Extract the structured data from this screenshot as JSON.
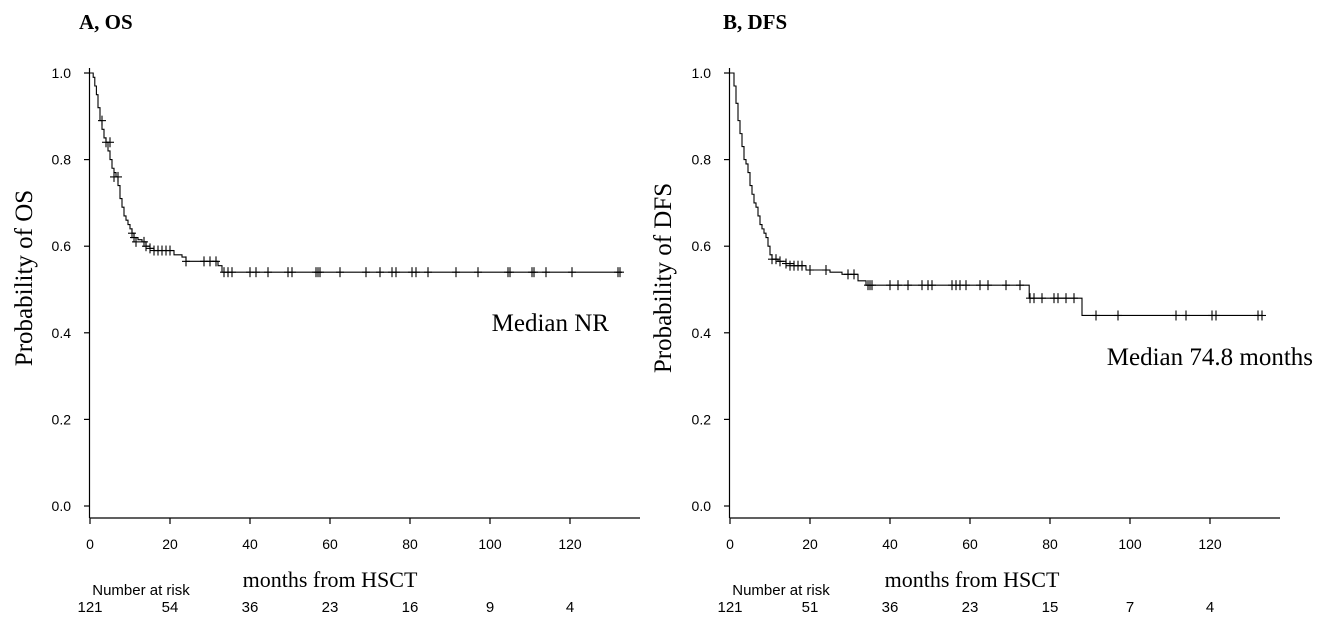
{
  "chart_data": [
    {
      "type": "line",
      "title": "A, OS",
      "xlabel": "months from HSCT",
      "ylabel": "Probability of OS",
      "xlim": [
        0,
        138
      ],
      "ylim": [
        0,
        1
      ],
      "x_ticks": [
        0,
        20,
        40,
        60,
        80,
        100,
        120
      ],
      "y_ticks": [
        0.0,
        0.2,
        0.4,
        0.6,
        0.8,
        1.0
      ],
      "annotation": "Median  NR",
      "risk_table": {
        "label": "Number at risk",
        "times": [
          0,
          20,
          40,
          60,
          80,
          100,
          120
        ],
        "counts": [
          "121",
          "54",
          "36",
          "23",
          "16",
          "9",
          "4"
        ]
      },
      "series": [
        {
          "steps": [
            [
              0,
              1.0
            ],
            [
              0.8,
              0.99
            ],
            [
              1.2,
              0.97
            ],
            [
              1.6,
              0.95
            ],
            [
              2.0,
              0.92
            ],
            [
              2.5,
              0.89
            ],
            [
              3.0,
              0.87
            ],
            [
              3.5,
              0.85
            ],
            [
              4.0,
              0.84
            ],
            [
              4.5,
              0.82
            ],
            [
              5.0,
              0.8
            ],
            [
              5.5,
              0.78
            ],
            [
              6.0,
              0.77
            ],
            [
              6.5,
              0.76
            ],
            [
              7.0,
              0.74
            ],
            [
              7.5,
              0.71
            ],
            [
              8.0,
              0.69
            ],
            [
              8.5,
              0.67
            ],
            [
              9.0,
              0.66
            ],
            [
              9.5,
              0.65
            ],
            [
              10.0,
              0.64
            ],
            [
              10.5,
              0.63
            ],
            [
              11.0,
              0.62
            ],
            [
              12.0,
              0.615
            ],
            [
              13.0,
              0.61
            ],
            [
              14.0,
              0.6
            ],
            [
              15.0,
              0.595
            ],
            [
              16.0,
              0.59
            ],
            [
              21.0,
              0.58
            ],
            [
              23.0,
              0.575
            ],
            [
              24.0,
              0.565
            ],
            [
              32.0,
              0.555
            ],
            [
              33.0,
              0.54
            ]
          ],
          "end": 133,
          "censors": [
            [
              3,
              0.89
            ],
            [
              4,
              0.84
            ],
            [
              5,
              0.84
            ],
            [
              6,
              0.76
            ],
            [
              7,
              0.76
            ],
            [
              10.5,
              0.63
            ],
            [
              11,
              0.62
            ],
            [
              11.5,
              0.61
            ],
            [
              13.5,
              0.61
            ],
            [
              14,
              0.6
            ],
            [
              15,
              0.595
            ],
            [
              16,
              0.59
            ],
            [
              17,
              0.59
            ],
            [
              18,
              0.59
            ],
            [
              19,
              0.59
            ],
            [
              20,
              0.59
            ],
            [
              24,
              0.565
            ],
            [
              28.5,
              0.565
            ],
            [
              30,
              0.565
            ],
            [
              31.5,
              0.565
            ],
            [
              33.5,
              0.54
            ],
            [
              34.5,
              0.54
            ],
            [
              35.5,
              0.54
            ],
            [
              40,
              0.54
            ],
            [
              41.5,
              0.54
            ],
            [
              44.5,
              0.54
            ],
            [
              49.5,
              0.54
            ],
            [
              50.5,
              0.54
            ],
            [
              56.5,
              0.54
            ],
            [
              57,
              0.54
            ],
            [
              57.5,
              0.54
            ],
            [
              62.5,
              0.54
            ],
            [
              69,
              0.54
            ],
            [
              72.5,
              0.54
            ],
            [
              75.5,
              0.54
            ],
            [
              76.5,
              0.54
            ],
            [
              80.5,
              0.54
            ],
            [
              81.5,
              0.54
            ],
            [
              84.5,
              0.54
            ],
            [
              91.5,
              0.54
            ],
            [
              97,
              0.54
            ],
            [
              104.5,
              0.54
            ],
            [
              105,
              0.54
            ],
            [
              110.5,
              0.54
            ],
            [
              111,
              0.54
            ],
            [
              114,
              0.54
            ],
            [
              120.5,
              0.54
            ],
            [
              132,
              0.54
            ],
            [
              132.5,
              0.54
            ]
          ]
        }
      ]
    },
    {
      "type": "line",
      "title": "B, DFS",
      "xlabel": "months from HSCT",
      "ylabel": "Probability of  DFS",
      "xlim": [
        0,
        138
      ],
      "ylim": [
        0,
        1
      ],
      "x_ticks": [
        0,
        20,
        40,
        60,
        80,
        100,
        120
      ],
      "y_ticks": [
        0.0,
        0.2,
        0.4,
        0.6,
        0.8,
        1.0
      ],
      "annotation": "Median  74.8 months",
      "risk_table": {
        "label": "Number at risk",
        "times": [
          0,
          20,
          40,
          60,
          80,
          100,
          120
        ],
        "counts": [
          "121",
          "51",
          "36",
          "23",
          "15",
          "7",
          "4"
        ]
      },
      "series": [
        {
          "steps": [
            [
              0,
              1.0
            ],
            [
              1.0,
              0.97
            ],
            [
              1.5,
              0.93
            ],
            [
              2.0,
              0.89
            ],
            [
              2.5,
              0.86
            ],
            [
              3.0,
              0.83
            ],
            [
              3.5,
              0.8
            ],
            [
              4.0,
              0.79
            ],
            [
              4.5,
              0.77
            ],
            [
              5.0,
              0.74
            ],
            [
              5.5,
              0.72
            ],
            [
              6.0,
              0.7
            ],
            [
              6.5,
              0.69
            ],
            [
              7.0,
              0.67
            ],
            [
              7.5,
              0.65
            ],
            [
              8.0,
              0.64
            ],
            [
              8.5,
              0.63
            ],
            [
              9.0,
              0.62
            ],
            [
              9.5,
              0.6
            ],
            [
              10.0,
              0.58
            ],
            [
              10.5,
              0.57
            ],
            [
              12.0,
              0.565
            ],
            [
              14.0,
              0.56
            ],
            [
              16.0,
              0.555
            ],
            [
              19.0,
              0.545
            ],
            [
              25.0,
              0.54
            ],
            [
              28.0,
              0.535
            ],
            [
              32.0,
              0.52
            ],
            [
              34.0,
              0.51
            ],
            [
              74.8,
              0.48
            ],
            [
              88.0,
              0.44
            ]
          ],
          "end": 133,
          "censors": [
            [
              10.5,
              0.57
            ],
            [
              11.5,
              0.57
            ],
            [
              12.5,
              0.565
            ],
            [
              14,
              0.56
            ],
            [
              15,
              0.555
            ],
            [
              16,
              0.555
            ],
            [
              17,
              0.555
            ],
            [
              18,
              0.555
            ],
            [
              20,
              0.545
            ],
            [
              24,
              0.545
            ],
            [
              29.5,
              0.535
            ],
            [
              31,
              0.535
            ],
            [
              34.5,
              0.51
            ],
            [
              35,
              0.51
            ],
            [
              35.5,
              0.51
            ],
            [
              40,
              0.51
            ],
            [
              42,
              0.51
            ],
            [
              44.5,
              0.51
            ],
            [
              48,
              0.51
            ],
            [
              49.5,
              0.51
            ],
            [
              50.5,
              0.51
            ],
            [
              55.5,
              0.51
            ],
            [
              56.5,
              0.51
            ],
            [
              57.5,
              0.51
            ],
            [
              59,
              0.51
            ],
            [
              62.5,
              0.51
            ],
            [
              64.5,
              0.51
            ],
            [
              69,
              0.51
            ],
            [
              72.5,
              0.51
            ],
            [
              75,
              0.48
            ],
            [
              76,
              0.48
            ],
            [
              78,
              0.48
            ],
            [
              81,
              0.48
            ],
            [
              82,
              0.48
            ],
            [
              84,
              0.48
            ],
            [
              86,
              0.48
            ],
            [
              91.5,
              0.44
            ],
            [
              97,
              0.44
            ],
            [
              111.5,
              0.44
            ],
            [
              114,
              0.44
            ],
            [
              120.5,
              0.44
            ],
            [
              121.5,
              0.44
            ],
            [
              132,
              0.44
            ],
            [
              133,
              0.44
            ]
          ]
        }
      ]
    }
  ]
}
